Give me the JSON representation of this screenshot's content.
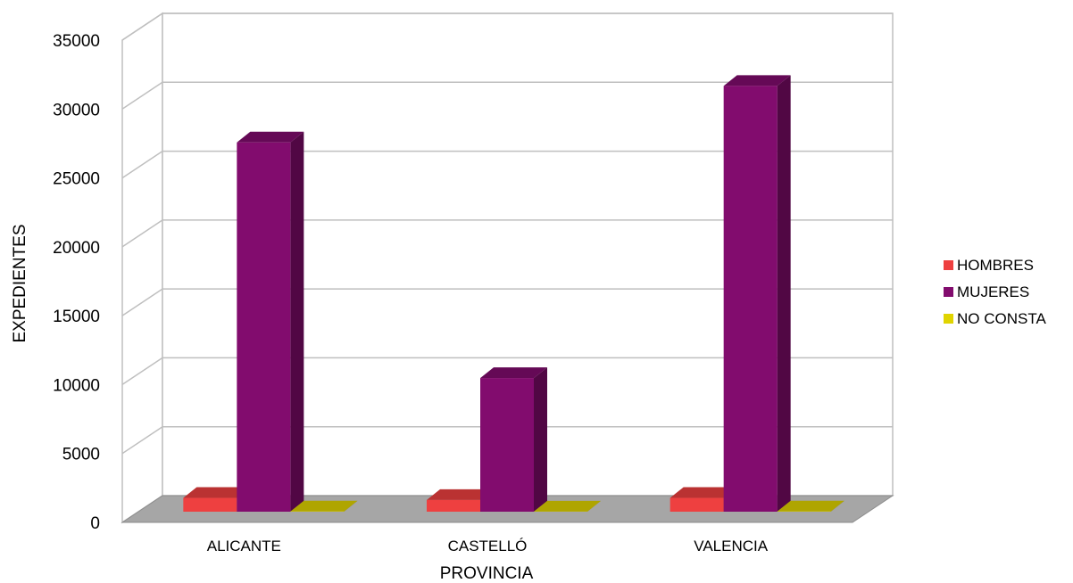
{
  "chart_data": {
    "type": "bar",
    "style": "3d-clustered-column",
    "title": "",
    "xlabel": "PROVINCIA",
    "ylabel": "EXPEDIENTES",
    "ylim": [
      0,
      35000
    ],
    "yticks": [
      0,
      5000,
      10000,
      15000,
      20000,
      25000,
      30000,
      35000
    ],
    "categories": [
      "ALICANTE",
      "CASTELLÓ",
      "VALENCIA"
    ],
    "series": [
      {
        "name": "HOMBRES",
        "color": "#ee4040",
        "values": [
          1000,
          850,
          1000
        ]
      },
      {
        "name": "MUJERES",
        "color": "#820c6e",
        "values": [
          26800,
          9700,
          30900
        ]
      },
      {
        "name": "NO CONSTA",
        "color": "#e0d400",
        "values": [
          20,
          10,
          20
        ]
      }
    ],
    "grid": true,
    "legend": "right"
  }
}
